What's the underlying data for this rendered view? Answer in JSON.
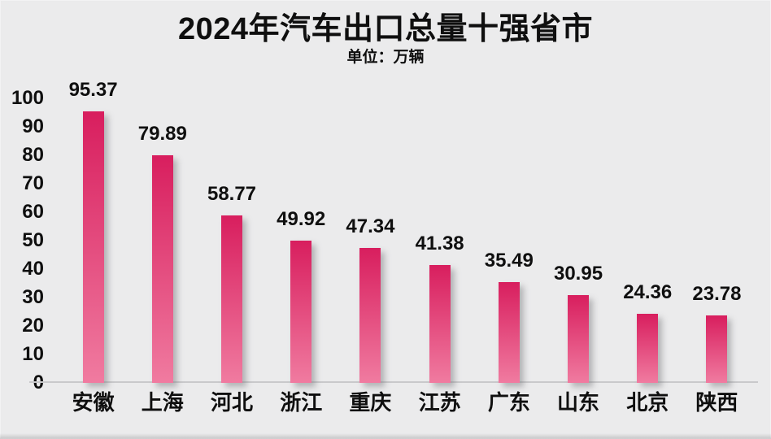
{
  "chart_data": {
    "type": "bar",
    "title": "2024年汽车出口总量十强省市",
    "unit_label": "单位：万辆",
    "categories": [
      "安徽",
      "上海",
      "河北",
      "浙江",
      "重庆",
      "江苏",
      "广东",
      "山东",
      "北京",
      "陕西"
    ],
    "values": [
      95.37,
      79.89,
      58.77,
      49.92,
      47.34,
      41.38,
      35.49,
      30.95,
      24.36,
      23.78
    ],
    "value_labels": [
      "95.37",
      "79.89",
      "58.77",
      "49.92",
      "47.34",
      "41.38",
      "35.49",
      "30.95",
      "24.36",
      "23.78"
    ],
    "xlabel": "",
    "ylabel": "",
    "ylim": [
      0,
      100
    ],
    "yticks": [
      0,
      10,
      20,
      30,
      40,
      50,
      60,
      70,
      80,
      90,
      100
    ],
    "grid": false,
    "legend_position": "none",
    "colors": {
      "background": "#ebebec",
      "text": "#0f0f0f",
      "bar_gradient_top": "#d81e5e",
      "bar_gradient_bottom": "#f07ba0",
      "axis_line": "#c9c9cb"
    }
  }
}
